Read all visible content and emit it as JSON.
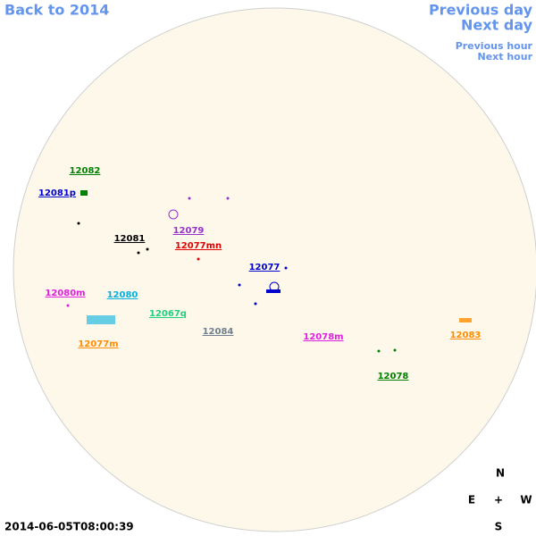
{
  "nav": {
    "back": "Back to 2014",
    "previous_day": "Previous day",
    "next_day": "Next day",
    "previous_hour": "Previous hour",
    "next_hour": "Next hour"
  },
  "regions": [
    {
      "label": "12082",
      "color": "#008000"
    },
    {
      "label": "12081p",
      "color": "#0000cd"
    },
    {
      "label": "12081",
      "color": "#000000"
    },
    {
      "label": "12079",
      "color": "#9932cc"
    },
    {
      "label": "12077mn",
      "color": "#e00000"
    },
    {
      "label": "12077",
      "color": "#0000cd"
    },
    {
      "label": "12080m",
      "color": "#e020e0"
    },
    {
      "label": "12080",
      "color": "#00b0e0"
    },
    {
      "label": "12067q",
      "color": "#20d080"
    },
    {
      "label": "12084",
      "color": "#708090"
    },
    {
      "label": "12078m",
      "color": "#e020e0"
    },
    {
      "label": "12083",
      "color": "#ff8c00"
    },
    {
      "label": "12077m",
      "color": "#ff8c00"
    },
    {
      "label": "12078",
      "color": "#008000"
    }
  ],
  "compass": {
    "north": "N",
    "east": "E",
    "center": "+",
    "west": "W",
    "south": "S"
  },
  "timestamp": "2014-06-05T08:00:39"
}
